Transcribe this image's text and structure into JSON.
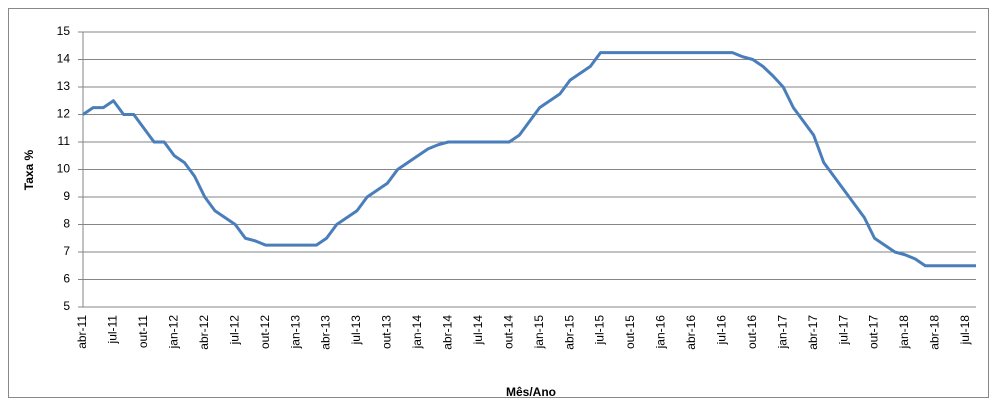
{
  "chart_data": {
    "type": "line",
    "x_label": "Mês/Ano",
    "y_label": "Taxa %",
    "categories": [
      "abr-11",
      null,
      null,
      "jul-11",
      null,
      null,
      "out-11",
      null,
      null,
      "jan-12",
      null,
      null,
      "abr-12",
      null,
      null,
      "jul-12",
      null,
      null,
      "out-12",
      null,
      null,
      "jan-13",
      null,
      null,
      "abr-13",
      null,
      null,
      "jul-13",
      null,
      null,
      "out-13",
      null,
      null,
      "jan-14",
      null,
      null,
      "abr-14",
      null,
      null,
      "jul-14",
      null,
      null,
      "out-14",
      null,
      null,
      "jan-15",
      null,
      null,
      "abr-15",
      null,
      null,
      "jul-15",
      null,
      null,
      "out-15",
      null,
      null,
      "jan-16",
      null,
      null,
      "abr-16",
      null,
      null,
      "jul-16",
      null,
      null,
      "out-16",
      null,
      null,
      "jan-17",
      null,
      null,
      "abr-17",
      null,
      null,
      "jul-17",
      null,
      null,
      "out-17",
      null,
      null,
      "jan-18",
      null,
      null,
      "abr-18",
      null,
      null,
      "jul-18",
      null
    ],
    "values": [
      12,
      12.25,
      12.25,
      12.5,
      12,
      12,
      11.5,
      11,
      11,
      10.5,
      10.25,
      9.75,
      9,
      8.5,
      8.25,
      8,
      7.5,
      7.4,
      7.25,
      7.25,
      7.25,
      7.25,
      7.25,
      7.25,
      7.5,
      8,
      8.25,
      8.5,
      9,
      9.25,
      9.5,
      10,
      10.25,
      10.5,
      10.75,
      10.9,
      11,
      11,
      11,
      11,
      11,
      11,
      11,
      11.25,
      11.75,
      12.25,
      12.5,
      12.75,
      13.25,
      13.5,
      13.75,
      14.25,
      14.25,
      14.25,
      14.25,
      14.25,
      14.25,
      14.25,
      14.25,
      14.25,
      14.25,
      14.25,
      14.25,
      14.25,
      14.25,
      14.1,
      14,
      13.75,
      13.4,
      13,
      12.25,
      11.75,
      11.25,
      10.25,
      9.75,
      9.25,
      8.75,
      8.25,
      7.5,
      7.25,
      7,
      6.9,
      6.75,
      6.5,
      6.5,
      6.5,
      6.5,
      6.5,
      6.5
    ],
    "color": "#4a7ebb",
    "ylim": [
      5,
      15
    ],
    "yticks": [
      5,
      6,
      7,
      8,
      9,
      10,
      11,
      12,
      13,
      14,
      15
    ],
    "grid": true
  }
}
